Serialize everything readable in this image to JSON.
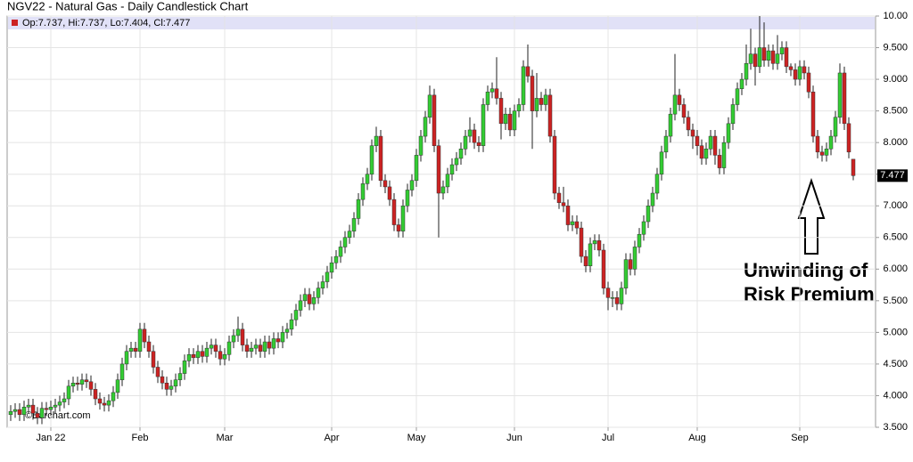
{
  "chart_data": {
    "type": "candlestick",
    "title": "NGV22 - Natural Gas - Daily Candlestick Chart",
    "legend_text": "Op:7.737, Hi:7.737, Lo:7.404, Cl:7.477",
    "watermark": "©Barchart.com",
    "annotation": [
      "Unwinding of",
      "Risk Premium"
    ],
    "up_color": "#33cc33",
    "down_color": "#cc2222",
    "grid": true,
    "ylim": [
      3.5,
      10.0
    ],
    "yticks": [
      {
        "value": 3.5,
        "label": "3.500"
      },
      {
        "value": 4.0,
        "label": "4.000"
      },
      {
        "value": 4.5,
        "label": "4.500"
      },
      {
        "value": 5.0,
        "label": "5.000"
      },
      {
        "value": 5.5,
        "label": "5.500"
      },
      {
        "value": 6.0,
        "label": "6.000"
      },
      {
        "value": 6.5,
        "label": "6.500"
      },
      {
        "value": 7.0,
        "label": "7.000"
      },
      {
        "value": 7.5,
        "label": "7.500"
      },
      {
        "value": 8.0,
        "label": "8.000"
      },
      {
        "value": 8.5,
        "label": "8.500"
      },
      {
        "value": 9.0,
        "label": "9.000"
      },
      {
        "value": 9.5,
        "label": "9.500"
      },
      {
        "value": 10.0,
        "label": "10.00"
      }
    ],
    "categories": [
      null,
      null,
      null,
      null,
      null,
      null,
      null,
      null,
      null,
      "Jan 22",
      null,
      null,
      null,
      null,
      null,
      null,
      null,
      null,
      null,
      null,
      null,
      null,
      null,
      null,
      null,
      null,
      null,
      null,
      null,
      "Feb",
      null,
      null,
      null,
      null,
      null,
      null,
      null,
      null,
      null,
      null,
      null,
      null,
      null,
      null,
      null,
      null,
      null,
      null,
      "Mar",
      null,
      null,
      null,
      null,
      null,
      null,
      null,
      null,
      null,
      null,
      null,
      null,
      null,
      null,
      null,
      null,
      null,
      null,
      null,
      null,
      null,
      null,
      null,
      "Apr",
      null,
      null,
      null,
      null,
      null,
      null,
      null,
      null,
      null,
      null,
      null,
      null,
      null,
      null,
      null,
      null,
      null,
      null,
      "May",
      null,
      null,
      null,
      null,
      null,
      null,
      null,
      null,
      null,
      null,
      null,
      null,
      null,
      null,
      null,
      null,
      null,
      null,
      null,
      null,
      null,
      "Jun",
      null,
      null,
      null,
      null,
      null,
      null,
      null,
      null,
      null,
      null,
      null,
      null,
      null,
      null,
      null,
      null,
      null,
      null,
      null,
      null,
      "Jul",
      null,
      null,
      null,
      null,
      null,
      null,
      null,
      null,
      null,
      null,
      null,
      null,
      null,
      null,
      null,
      null,
      null,
      null,
      null,
      "Aug",
      null,
      null,
      null,
      null,
      null,
      null,
      null,
      null,
      null,
      null,
      null,
      null,
      null,
      null,
      null,
      null,
      null,
      null,
      null,
      null,
      null,
      null,
      "Sep",
      null,
      null,
      null,
      null,
      null,
      null,
      null,
      null,
      null,
      null,
      null,
      null
    ],
    "open": [
      3.7,
      3.75,
      3.78,
      3.7,
      3.82,
      3.85,
      3.72,
      3.65,
      3.8,
      3.78,
      3.82,
      3.85,
      3.9,
      3.95,
      4.15,
      4.2,
      4.18,
      4.25,
      4.22,
      4.1,
      3.95,
      3.88,
      3.85,
      3.92,
      4.05,
      4.25,
      4.5,
      4.7,
      4.75,
      4.7,
      5.05,
      4.85,
      4.7,
      4.45,
      4.3,
      4.2,
      4.1,
      4.15,
      4.25,
      4.35,
      4.55,
      4.65,
      4.6,
      4.7,
      4.62,
      4.75,
      4.8,
      4.7,
      4.58,
      4.65,
      4.85,
      4.95,
      5.05,
      4.8,
      4.7,
      4.75,
      4.8,
      4.7,
      4.85,
      4.75,
      4.9,
      4.85,
      5.0,
      5.05,
      5.2,
      5.35,
      5.5,
      5.6,
      5.45,
      5.55,
      5.7,
      5.8,
      5.95,
      6.1,
      6.2,
      6.35,
      6.5,
      6.6,
      6.8,
      7.1,
      7.35,
      7.5,
      7.95,
      8.1,
      7.4,
      7.3,
      7.1,
      6.7,
      6.6,
      7.0,
      7.25,
      7.4,
      7.8,
      8.1,
      8.4,
      8.75,
      7.95,
      7.2,
      7.3,
      7.5,
      7.65,
      7.75,
      7.9,
      8.1,
      8.2,
      8.0,
      7.95,
      8.6,
      8.8,
      8.85,
      8.7,
      8.3,
      8.45,
      8.2,
      8.5,
      8.6,
      9.2,
      9.05,
      8.5,
      8.7,
      8.6,
      8.75,
      8.1,
      7.2,
      7.05,
      7.0,
      6.7,
      6.75,
      6.65,
      6.2,
      6.05,
      6.4,
      6.45,
      6.3,
      5.7,
      5.55,
      5.55,
      5.45,
      5.7,
      6.15,
      6.0,
      6.35,
      6.55,
      6.75,
      7.0,
      7.2,
      7.5,
      7.85,
      8.1,
      8.45,
      8.75,
      8.6,
      8.4,
      8.2,
      8.1,
      7.95,
      7.75,
      7.9,
      8.1,
      7.8,
      7.6,
      8.0,
      8.3,
      8.6,
      8.85,
      9.0,
      9.25,
      9.4,
      9.2,
      9.5,
      9.3,
      9.45,
      9.25,
      9.4,
      9.5,
      9.2,
      9.15,
      9.0,
      9.2,
      9.1,
      8.8,
      8.1,
      7.85,
      7.8,
      7.9,
      8.1,
      8.4,
      9.1,
      8.3,
      7.737
    ],
    "high": [
      3.85,
      3.88,
      3.88,
      3.92,
      3.95,
      3.95,
      3.82,
      3.9,
      3.9,
      3.92,
      3.95,
      4.0,
      4.05,
      4.25,
      4.3,
      4.3,
      4.35,
      4.35,
      4.32,
      4.2,
      4.05,
      3.98,
      4.02,
      4.15,
      4.35,
      4.6,
      4.8,
      4.85,
      4.85,
      5.15,
      5.15,
      4.95,
      4.8,
      4.55,
      4.4,
      4.3,
      4.25,
      4.35,
      4.45,
      4.65,
      4.75,
      4.75,
      4.8,
      4.8,
      4.85,
      4.9,
      4.9,
      4.8,
      4.75,
      4.95,
      5.05,
      5.25,
      5.15,
      4.9,
      4.85,
      4.9,
      4.9,
      4.95,
      4.95,
      5.0,
      5.0,
      5.1,
      5.15,
      5.3,
      5.45,
      5.6,
      5.7,
      5.7,
      5.65,
      5.8,
      5.9,
      6.05,
      6.2,
      6.3,
      6.45,
      6.6,
      6.7,
      6.9,
      7.2,
      7.45,
      7.6,
      8.05,
      8.25,
      8.2,
      7.5,
      7.4,
      7.2,
      6.8,
      7.1,
      7.35,
      7.5,
      7.9,
      8.2,
      8.5,
      8.9,
      8.85,
      8.05,
      7.4,
      7.6,
      7.75,
      7.85,
      8.0,
      8.2,
      8.4,
      8.3,
      8.1,
      8.7,
      8.9,
      8.95,
      9.35,
      8.8,
      8.55,
      8.55,
      8.6,
      8.7,
      9.3,
      9.55,
      9.15,
      9.1,
      8.8,
      8.85,
      8.85,
      8.2,
      7.3,
      7.3,
      7.1,
      6.85,
      6.85,
      6.75,
      6.3,
      6.5,
      6.55,
      6.55,
      6.4,
      5.8,
      5.65,
      5.65,
      5.8,
      6.25,
      6.25,
      6.45,
      6.65,
      6.85,
      7.1,
      7.3,
      7.6,
      7.95,
      8.2,
      8.55,
      9.4,
      8.85,
      8.7,
      8.5,
      8.3,
      8.2,
      8.05,
      8.0,
      8.2,
      8.2,
      7.9,
      8.1,
      8.4,
      8.7,
      8.95,
      9.1,
      9.55,
      9.8,
      9.5,
      10.0,
      9.9,
      9.55,
      9.55,
      9.7,
      9.6,
      9.6,
      9.25,
      9.25,
      9.3,
      9.3,
      9.2,
      8.9,
      8.2,
      7.95,
      8.0,
      8.2,
      8.5,
      9.25,
      9.2,
      8.4,
      7.737
    ],
    "low": [
      3.6,
      3.65,
      3.6,
      3.6,
      3.72,
      3.62,
      3.55,
      3.55,
      3.68,
      3.68,
      3.72,
      3.75,
      3.8,
      3.85,
      4.05,
      4.08,
      4.08,
      4.12,
      4.0,
      3.85,
      3.78,
      3.75,
      3.75,
      3.82,
      3.95,
      4.15,
      4.4,
      4.6,
      4.6,
      4.6,
      4.75,
      4.6,
      4.35,
      4.2,
      4.1,
      4.0,
      4.0,
      4.05,
      4.15,
      4.25,
      4.45,
      4.5,
      4.5,
      4.52,
      4.52,
      4.65,
      4.6,
      4.48,
      4.48,
      4.55,
      4.75,
      4.85,
      4.7,
      4.6,
      4.6,
      4.65,
      4.6,
      4.6,
      4.65,
      4.65,
      4.75,
      4.75,
      4.9,
      4.95,
      5.1,
      5.25,
      5.4,
      5.35,
      5.35,
      5.45,
      5.6,
      5.7,
      5.85,
      6.0,
      6.1,
      6.25,
      6.4,
      6.5,
      6.7,
      7.0,
      7.25,
      7.4,
      7.85,
      7.3,
      7.2,
      7.0,
      6.6,
      6.5,
      6.5,
      6.9,
      7.15,
      7.3,
      7.7,
      8.0,
      8.3,
      7.85,
      6.5,
      7.1,
      7.2,
      7.4,
      7.55,
      7.65,
      7.8,
      8.0,
      7.9,
      7.85,
      7.85,
      8.5,
      8.7,
      8.6,
      8.05,
      8.2,
      8.1,
      8.1,
      8.4,
      8.5,
      8.95,
      7.9,
      8.4,
      8.5,
      8.5,
      8.0,
      7.1,
      6.95,
      6.9,
      6.6,
      6.6,
      6.55,
      6.1,
      5.95,
      5.95,
      6.3,
      6.2,
      5.6,
      5.35,
      5.4,
      5.35,
      5.35,
      5.6,
      5.9,
      5.9,
      6.25,
      6.45,
      6.65,
      6.9,
      7.1,
      7.4,
      7.75,
      8.0,
      8.35,
      8.5,
      8.3,
      8.1,
      7.9,
      7.8,
      7.65,
      7.65,
      7.8,
      7.65,
      7.5,
      7.5,
      7.9,
      8.2,
      8.5,
      8.75,
      8.9,
      9.15,
      8.9,
      9.1,
      9.2,
      9.2,
      9.15,
      9.15,
      9.3,
      9.1,
      9.05,
      8.9,
      8.9,
      9.0,
      8.7,
      8.0,
      7.75,
      7.7,
      7.7,
      7.8,
      8.0,
      8.3,
      8.2,
      7.75,
      7.404
    ],
    "close": [
      3.75,
      3.78,
      3.7,
      3.82,
      3.85,
      3.72,
      3.65,
      3.8,
      3.78,
      3.82,
      3.85,
      3.9,
      3.95,
      4.15,
      4.2,
      4.18,
      4.25,
      4.22,
      4.1,
      3.95,
      3.88,
      3.85,
      3.92,
      4.05,
      4.25,
      4.5,
      4.7,
      4.75,
      4.7,
      5.05,
      4.85,
      4.7,
      4.45,
      4.3,
      4.2,
      4.1,
      4.15,
      4.25,
      4.35,
      4.55,
      4.65,
      4.6,
      4.7,
      4.62,
      4.75,
      4.8,
      4.7,
      4.58,
      4.65,
      4.85,
      4.95,
      5.05,
      4.8,
      4.7,
      4.75,
      4.8,
      4.7,
      4.85,
      4.75,
      4.9,
      4.85,
      5.0,
      5.05,
      5.2,
      5.35,
      5.5,
      5.6,
      5.45,
      5.55,
      5.7,
      5.8,
      5.95,
      6.1,
      6.2,
      6.35,
      6.5,
      6.6,
      6.8,
      7.1,
      7.35,
      7.5,
      7.95,
      8.1,
      7.4,
      7.3,
      7.1,
      6.7,
      6.6,
      7.0,
      7.25,
      7.4,
      7.8,
      8.1,
      8.4,
      8.75,
      7.95,
      7.2,
      7.3,
      7.5,
      7.65,
      7.75,
      7.9,
      8.1,
      8.2,
      8.0,
      7.95,
      8.6,
      8.8,
      8.85,
      8.7,
      8.3,
      8.45,
      8.2,
      8.5,
      8.6,
      9.2,
      9.05,
      8.5,
      8.7,
      8.6,
      8.75,
      8.1,
      7.2,
      7.05,
      7.0,
      6.7,
      6.75,
      6.65,
      6.2,
      6.05,
      6.4,
      6.45,
      6.3,
      5.7,
      5.55,
      5.55,
      5.45,
      5.7,
      6.15,
      6.0,
      6.35,
      6.55,
      6.75,
      7.0,
      7.2,
      7.5,
      7.85,
      8.1,
      8.45,
      8.75,
      8.6,
      8.4,
      8.2,
      8.1,
      7.95,
      7.75,
      7.9,
      8.1,
      7.8,
      7.6,
      8.0,
      8.3,
      8.6,
      8.85,
      9.0,
      9.25,
      9.4,
      9.2,
      9.5,
      9.3,
      9.45,
      9.25,
      9.4,
      9.5,
      9.2,
      9.15,
      9.0,
      9.2,
      9.1,
      8.8,
      8.1,
      7.85,
      7.8,
      7.9,
      8.1,
      8.4,
      9.1,
      8.3,
      7.85,
      7.477
    ]
  }
}
